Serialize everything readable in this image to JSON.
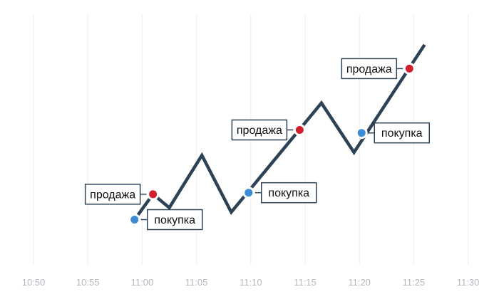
{
  "chart_data": {
    "type": "line",
    "x_tick_labels": [
      "10:50",
      "10:55",
      "11:00",
      "11:05",
      "11:10",
      "11:15",
      "11:20",
      "11:25",
      "11:30"
    ],
    "x_range": [
      "10:50",
      "11:30"
    ],
    "grid": "vertical",
    "series": [
      {
        "x": [
          "10:59",
          "11:01",
          "11:02.5",
          "11:05.5",
          "11:08.2",
          "11:16.5",
          "11:19.5",
          "11:26"
        ],
        "y": [
          0.12,
          0.32,
          0.23,
          0.58,
          0.2,
          0.93,
          0.6,
          1.32
        ],
        "color": "#2d4255"
      }
    ],
    "annotations": [
      {
        "label": "продажа",
        "x": "11:01",
        "y": 0.32,
        "kind": "sell",
        "color": "#d0202e",
        "side": "left"
      },
      {
        "label": "покупка",
        "x": "10:59.3",
        "y": 0.15,
        "kind": "buy",
        "color": "#3d8bd4",
        "side": "right"
      },
      {
        "label": "покупка",
        "x": "11:09.8",
        "y": 0.33,
        "kind": "buy",
        "color": "#3d8bd4",
        "side": "right"
      },
      {
        "label": "продажа",
        "x": "11:14.5",
        "y": 0.75,
        "kind": "sell",
        "color": "#d0202e",
        "side": "left"
      },
      {
        "label": "покупка",
        "x": "11:20.2",
        "y": 0.73,
        "kind": "buy",
        "color": "#3d8bd4",
        "side": "right"
      },
      {
        "label": "продажа",
        "x": "11:24.6",
        "y": 1.16,
        "kind": "sell",
        "color": "#d0202e",
        "side": "left"
      }
    ],
    "title": "",
    "xlabel": "",
    "ylabel": ""
  }
}
